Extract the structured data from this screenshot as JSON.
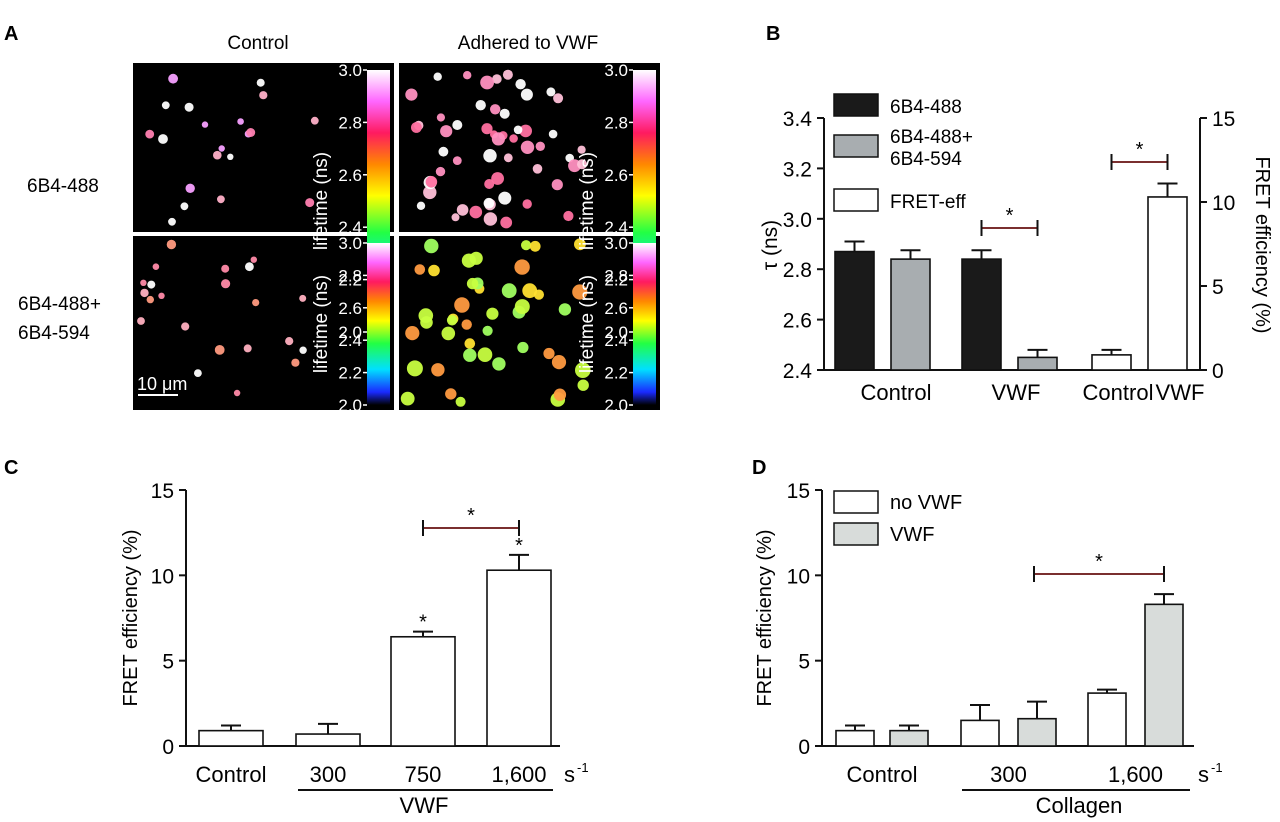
{
  "panels": {
    "a": {
      "letter": "A",
      "col_titles": [
        "Control",
        "Adhered to VWF"
      ],
      "row_labels": [
        [
          "6B4-488"
        ],
        [
          "6B4-488+",
          "6B4-594"
        ]
      ],
      "colorbar_label": "lifetime (ns)",
      "colorbar_ticks": [
        "3.0",
        "2.8",
        "2.6",
        "2.4",
        "2.2",
        "2.0"
      ],
      "scale_bar": "10 μm"
    },
    "b": {
      "letter": "B"
    },
    "c": {
      "letter": "C"
    },
    "d": {
      "letter": "D"
    }
  },
  "colors": {
    "panel_letter": "#2a8a8e",
    "black_bar": "#1a1a1a",
    "gray_bar": "#a8adb0",
    "light_bar": "#d8dcda",
    "white_bar": "#ffffff",
    "sig_bracket": "#7a2f2f"
  },
  "chart_data": [
    {
      "id": "B",
      "type": "bar",
      "legend": [
        "6B4-488",
        "6B4-488+\n6B4-594",
        "FRET-eff"
      ],
      "ylabel": "τ (ns)",
      "ylim": [
        2.4,
        3.4
      ],
      "yticks": [
        "2.4",
        "2.6",
        "2.8",
        "3.0",
        "3.2",
        "3.4"
      ],
      "ylabel_right": "FRET efficiency (%)",
      "ylim_right": [
        0,
        15
      ],
      "yticks_right": [
        "0",
        "5",
        "10",
        "15"
      ],
      "groups": [
        "Control",
        "VWF",
        "Control",
        "VWF"
      ],
      "bars": [
        {
          "series": "6B4-488",
          "group": 0,
          "value": 2.87,
          "err": 0.04,
          "axis": "left"
        },
        {
          "series": "6B4-488+6B4-594",
          "group": 0,
          "value": 2.84,
          "err": 0.035,
          "axis": "left"
        },
        {
          "series": "6B4-488",
          "group": 1,
          "value": 2.84,
          "err": 0.035,
          "axis": "left"
        },
        {
          "series": "6B4-488+6B4-594",
          "group": 1,
          "value": 2.45,
          "err": 0.03,
          "axis": "left"
        },
        {
          "series": "FRET-eff",
          "group": 2,
          "value": 0.9,
          "err": 0.3,
          "axis": "right"
        },
        {
          "series": "FRET-eff",
          "group": 3,
          "value": 10.3,
          "err": 0.8,
          "axis": "right"
        }
      ],
      "significance": [
        "*",
        "*"
      ]
    },
    {
      "id": "C",
      "type": "bar",
      "ylabel": "FRET efficiency (%)",
      "ylim": [
        0,
        15
      ],
      "yticks": [
        "0",
        "5",
        "10",
        "15"
      ],
      "categories": [
        "Control",
        "300",
        "750",
        "1,600"
      ],
      "values": [
        0.9,
        0.7,
        6.4,
        10.3
      ],
      "errors": [
        0.3,
        0.6,
        0.3,
        0.9
      ],
      "bar_stars": [
        "",
        "",
        "*",
        "*"
      ],
      "significance": [
        "*"
      ],
      "unit": "s",
      "unit_sup": "-1",
      "group_label": "VWF"
    },
    {
      "id": "D",
      "type": "bar",
      "legend": [
        "no VWF",
        "VWF"
      ],
      "ylabel": "FRET efficiency (%)",
      "ylim": [
        0,
        15
      ],
      "yticks": [
        "0",
        "5",
        "10",
        "15"
      ],
      "categories": [
        "Control",
        "300",
        "1,600"
      ],
      "series": [
        {
          "name": "no VWF",
          "values": [
            0.9,
            1.5,
            3.1
          ],
          "errors": [
            0.3,
            0.9,
            0.2
          ]
        },
        {
          "name": "VWF",
          "values": [
            0.9,
            1.6,
            8.3
          ],
          "errors": [
            0.3,
            1.0,
            0.6
          ]
        }
      ],
      "significance": [
        "*"
      ],
      "unit": "s",
      "unit_sup": "-1",
      "group_label": "Collagen"
    }
  ]
}
